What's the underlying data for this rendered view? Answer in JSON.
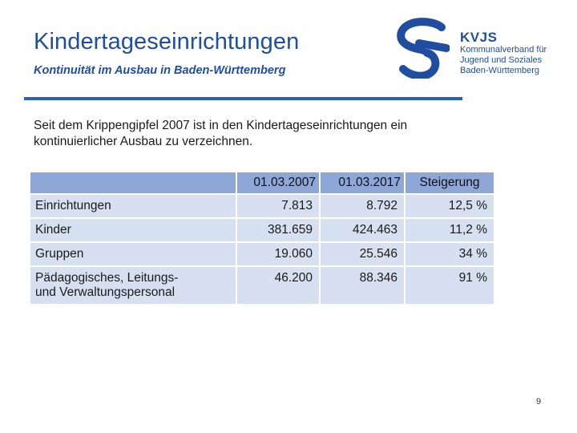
{
  "header": {
    "title": "Kindertageseinrichtungen",
    "subtitle": "Kontinuität im Ausbau in Baden-Württemberg"
  },
  "logo": {
    "abbr": "KVJS",
    "line1": "Kommunalverband für",
    "line2": "Jugend und Soziales",
    "line3": "Baden-Württemberg",
    "color": "#1f4ea1"
  },
  "intro": {
    "line1": "Seit dem Krippengipfel 2007 ist in den Kindertageseinrichtungen ein",
    "line2": "kontinuierlicher Ausbau zu verzeichnen."
  },
  "table": {
    "columns": [
      "",
      "01.03.2007",
      "01.03.2017",
      "Steigerung"
    ],
    "rows": [
      {
        "label": "Einrichtungen",
        "v2007": "7.813",
        "v2017": "8.792",
        "change": "12,5 %"
      },
      {
        "label": "Kinder",
        "v2007": "381.659",
        "v2017": "424.463",
        "change": "11,2 %"
      },
      {
        "label": "Gruppen",
        "v2007": "19.060",
        "v2017": "25.546",
        "change": "34 %"
      },
      {
        "label_line1": "Pädagogisches, Leitungs-",
        "label_line2": "und Verwaltungspersonal",
        "v2007": "46.200",
        "v2017": "88.346",
        "change": "91 %"
      }
    ]
  },
  "footer": {
    "page_number": "9"
  }
}
